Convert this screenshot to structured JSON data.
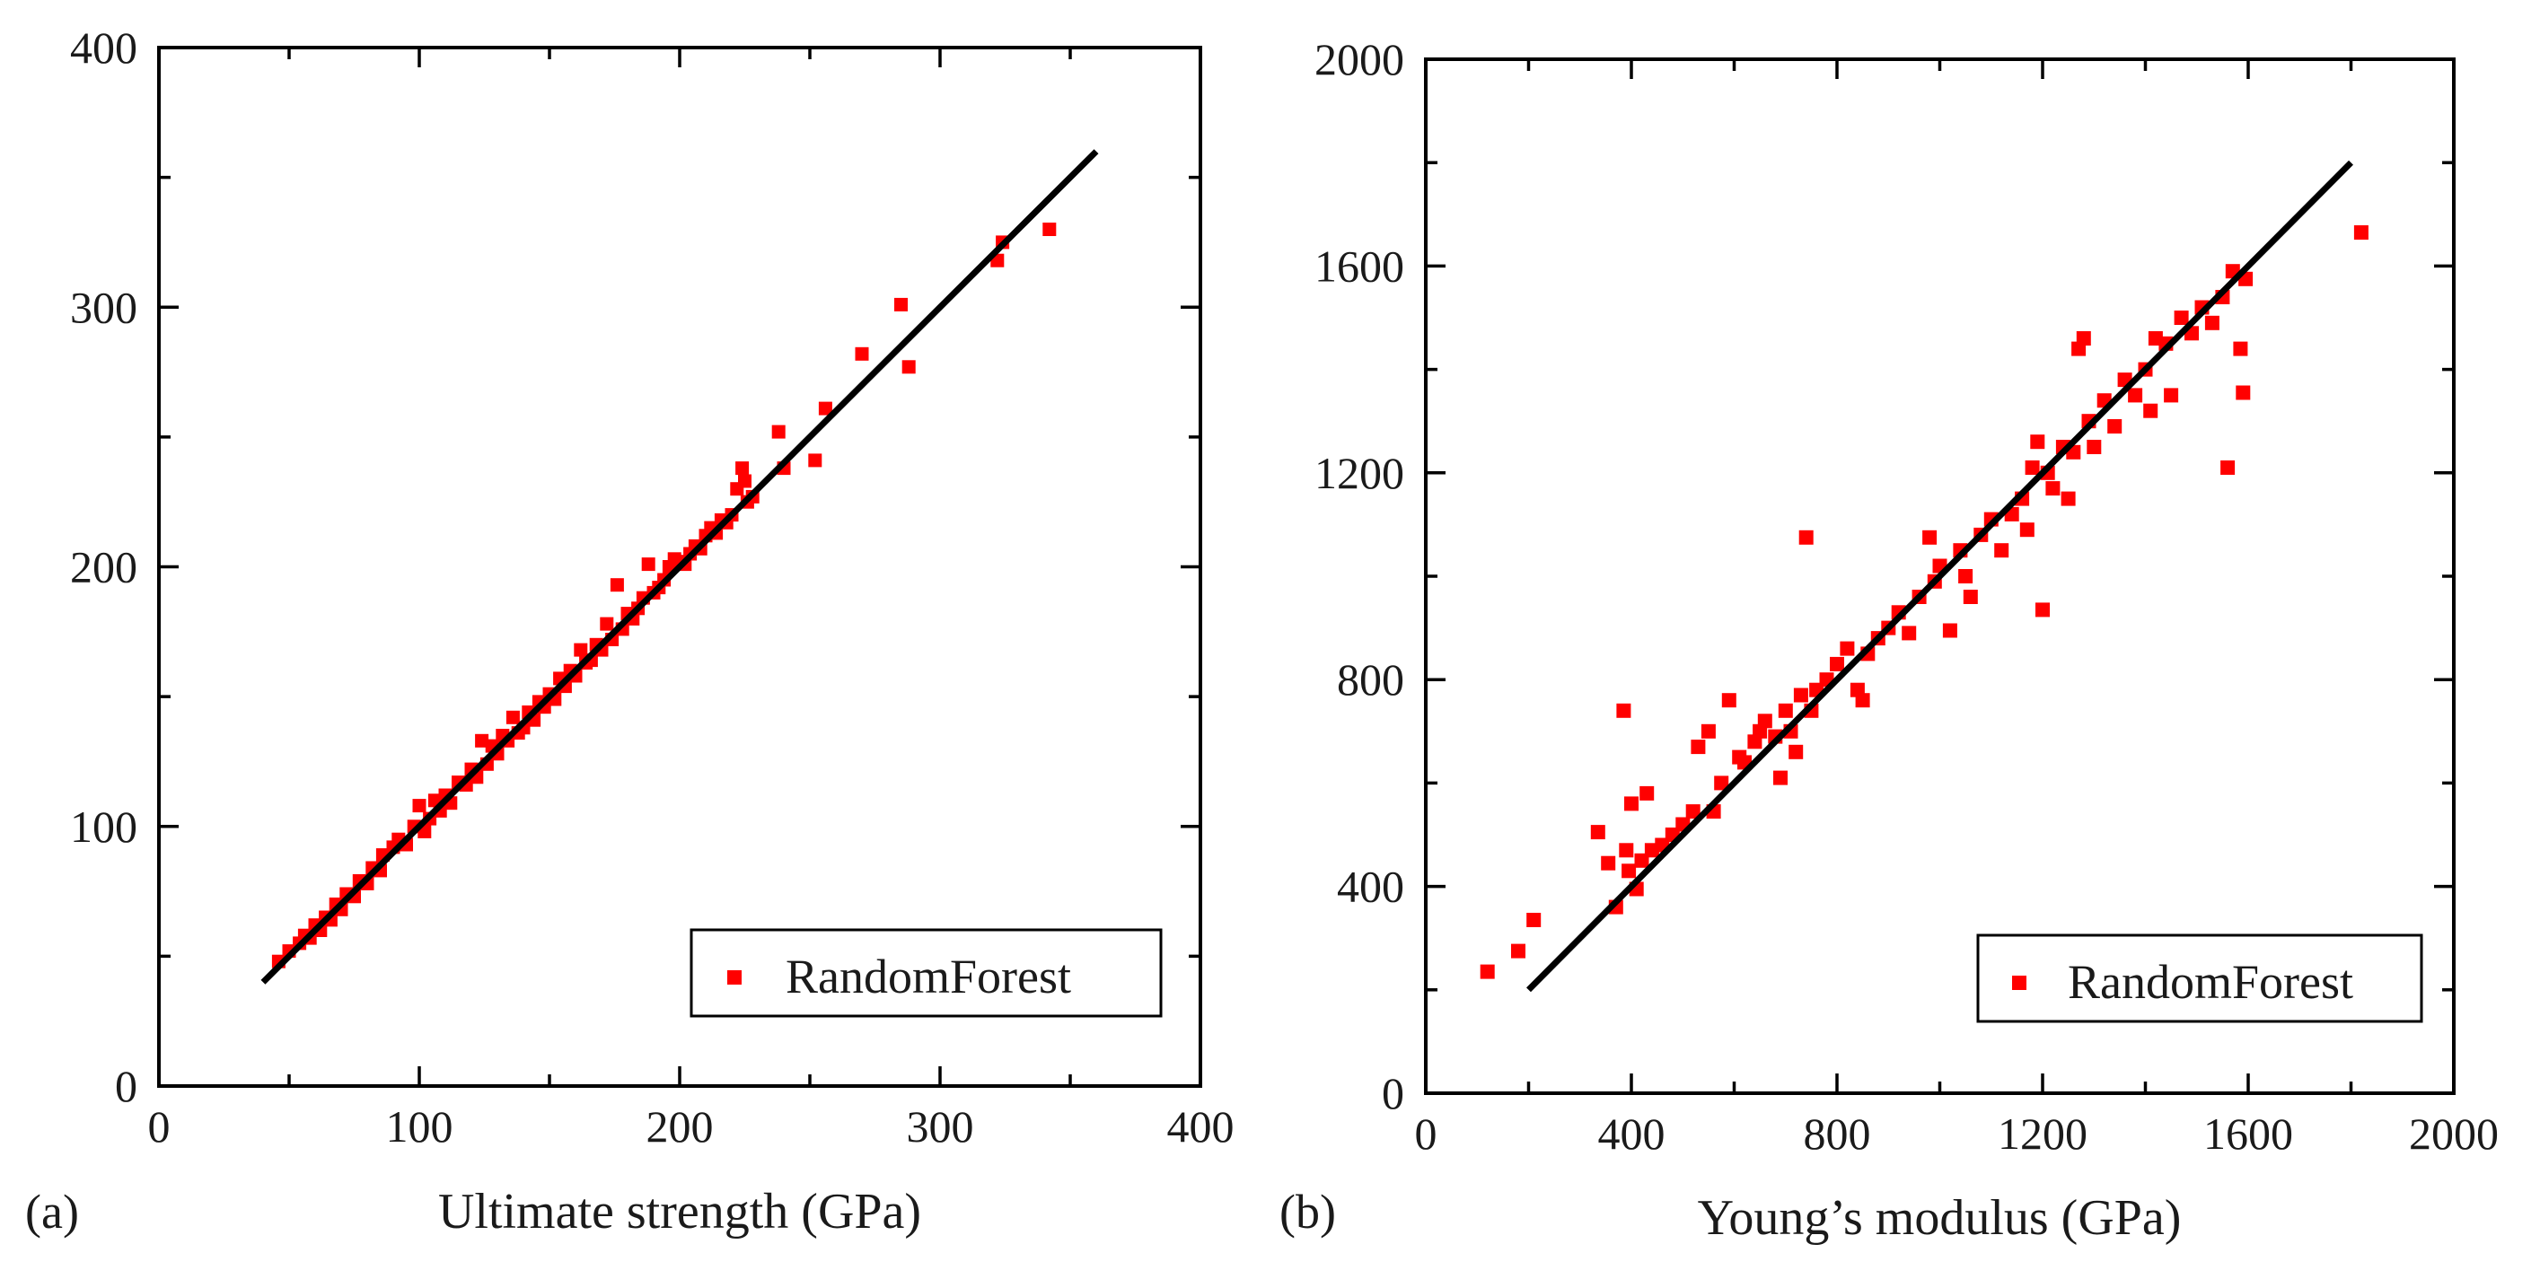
{
  "chart_data": [
    {
      "type": "scatter",
      "panel_label": "(a)",
      "title": "",
      "xlabel": "Ultimate strength (GPa)",
      "ylabel": "",
      "xlim": [
        0,
        400
      ],
      "ylim": [
        0,
        400
      ],
      "x_ticks": [
        "0",
        "100",
        "200",
        "300",
        "400"
      ],
      "y_ticks": [
        "0",
        "100",
        "200",
        "300",
        "400"
      ],
      "legend": {
        "label": "RandomForest",
        "position": "bottom-right"
      },
      "series": [
        {
          "name": "RandomForest",
          "marker": "square",
          "color": "#ff0000",
          "points": [
            [
              46,
              48
            ],
            [
              50,
              52
            ],
            [
              54,
              55
            ],
            [
              56,
              58
            ],
            [
              58,
              57
            ],
            [
              60,
              62
            ],
            [
              62,
              60
            ],
            [
              64,
              65
            ],
            [
              66,
              64
            ],
            [
              68,
              70
            ],
            [
              70,
              68
            ],
            [
              72,
              74
            ],
            [
              75,
              73
            ],
            [
              77,
              79
            ],
            [
              80,
              78
            ],
            [
              82,
              84
            ],
            [
              85,
              83
            ],
            [
              86,
              89
            ],
            [
              90,
              92
            ],
            [
              92,
              95
            ],
            [
              95,
              93
            ],
            [
              98,
              100
            ],
            [
              100,
              108
            ],
            [
              102,
              98
            ],
            [
              104,
              103
            ],
            [
              106,
              110
            ],
            [
              108,
              106
            ],
            [
              110,
              112
            ],
            [
              112,
              109
            ],
            [
              115,
              117
            ],
            [
              118,
              116
            ],
            [
              120,
              122
            ],
            [
              122,
              119
            ],
            [
              124,
              133
            ],
            [
              126,
              124
            ],
            [
              128,
              131
            ],
            [
              130,
              128
            ],
            [
              132,
              135
            ],
            [
              134,
              133
            ],
            [
              136,
              142
            ],
            [
              138,
              136
            ],
            [
              140,
              138
            ],
            [
              142,
              144
            ],
            [
              144,
              141
            ],
            [
              146,
              148
            ],
            [
              148,
              146
            ],
            [
              150,
              151
            ],
            [
              152,
              149
            ],
            [
              154,
              157
            ],
            [
              156,
              154
            ],
            [
              158,
              160
            ],
            [
              160,
              158
            ],
            [
              162,
              168
            ],
            [
              164,
              163
            ],
            [
              166,
              164
            ],
            [
              168,
              170
            ],
            [
              170,
              168
            ],
            [
              172,
              178
            ],
            [
              174,
              172
            ],
            [
              176,
              193
            ],
            [
              178,
              176
            ],
            [
              180,
              182
            ],
            [
              182,
              180
            ],
            [
              184,
              184
            ],
            [
              186,
              188
            ],
            [
              188,
              201
            ],
            [
              190,
              190
            ],
            [
              192,
              192
            ],
            [
              194,
              195
            ],
            [
              196,
              200
            ],
            [
              198,
              203
            ],
            [
              200,
              202
            ],
            [
              202,
              201
            ],
            [
              204,
              205
            ],
            [
              206,
              208
            ],
            [
              208,
              207
            ],
            [
              210,
              212
            ],
            [
              212,
              215
            ],
            [
              214,
              213
            ],
            [
              216,
              218
            ],
            [
              218,
              217
            ],
            [
              220,
              220
            ],
            [
              222,
              230
            ],
            [
              224,
              238
            ],
            [
              225,
              233
            ],
            [
              226,
              225
            ],
            [
              228,
              227
            ],
            [
              238,
              252
            ],
            [
              240,
              238
            ],
            [
              252,
              241
            ],
            [
              256,
              261
            ],
            [
              270,
              282
            ],
            [
              285,
              301
            ],
            [
              288,
              277
            ],
            [
              322,
              318
            ],
            [
              324,
              325
            ],
            [
              342,
              330
            ]
          ]
        }
      ],
      "reference_line": {
        "x": [
          40,
          360
        ],
        "y": [
          40,
          360
        ],
        "color": "#000000"
      }
    },
    {
      "type": "scatter",
      "panel_label": "(b)",
      "title": "",
      "xlabel": "Young’s modulus (GPa)",
      "ylabel": "",
      "xlim": [
        0,
        2000
      ],
      "ylim": [
        0,
        2000
      ],
      "x_ticks": [
        "0",
        "400",
        "800",
        "1200",
        "1600",
        "2000"
      ],
      "y_ticks": [
        "0",
        "400",
        "800",
        "1200",
        "1600",
        "2000"
      ],
      "legend": {
        "label": "RandomForest",
        "position": "bottom-right"
      },
      "series": [
        {
          "name": "RandomForest",
          "marker": "square",
          "color": "#ff0000",
          "points": [
            [
              120,
              235
            ],
            [
              180,
              275
            ],
            [
              210,
              335
            ],
            [
              335,
              505
            ],
            [
              355,
              445
            ],
            [
              370,
              360
            ],
            [
              385,
              740
            ],
            [
              390,
              470
            ],
            [
              395,
              430
            ],
            [
              400,
              560
            ],
            [
              410,
              395
            ],
            [
              420,
              450
            ],
            [
              430,
              580
            ],
            [
              440,
              470
            ],
            [
              460,
              480
            ],
            [
              480,
              500
            ],
            [
              500,
              520
            ],
            [
              520,
              545
            ],
            [
              530,
              670
            ],
            [
              550,
              700
            ],
            [
              560,
              545
            ],
            [
              575,
              600
            ],
            [
              590,
              760
            ],
            [
              610,
              650
            ],
            [
              620,
              640
            ],
            [
              640,
              680
            ],
            [
              650,
              700
            ],
            [
              660,
              720
            ],
            [
              680,
              690
            ],
            [
              690,
              610
            ],
            [
              700,
              740
            ],
            [
              710,
              700
            ],
            [
              720,
              660
            ],
            [
              730,
              770
            ],
            [
              740,
              1075
            ],
            [
              750,
              740
            ],
            [
              760,
              780
            ],
            [
              780,
              800
            ],
            [
              800,
              830
            ],
            [
              820,
              860
            ],
            [
              840,
              780
            ],
            [
              850,
              760
            ],
            [
              860,
              850
            ],
            [
              880,
              880
            ],
            [
              900,
              900
            ],
            [
              920,
              930
            ],
            [
              940,
              890
            ],
            [
              960,
              960
            ],
            [
              980,
              1075
            ],
            [
              990,
              990
            ],
            [
              1000,
              1020
            ],
            [
              1020,
              895
            ],
            [
              1040,
              1050
            ],
            [
              1050,
              1000
            ],
            [
              1060,
              960
            ],
            [
              1080,
              1080
            ],
            [
              1100,
              1110
            ],
            [
              1120,
              1050
            ],
            [
              1140,
              1120
            ],
            [
              1160,
              1150
            ],
            [
              1170,
              1090
            ],
            [
              1180,
              1210
            ],
            [
              1190,
              1260
            ],
            [
              1200,
              935
            ],
            [
              1210,
              1200
            ],
            [
              1220,
              1170
            ],
            [
              1240,
              1250
            ],
            [
              1250,
              1150
            ],
            [
              1260,
              1240
            ],
            [
              1270,
              1440
            ],
            [
              1280,
              1460
            ],
            [
              1290,
              1300
            ],
            [
              1300,
              1250
            ],
            [
              1320,
              1340
            ],
            [
              1340,
              1290
            ],
            [
              1360,
              1380
            ],
            [
              1380,
              1350
            ],
            [
              1400,
              1400
            ],
            [
              1410,
              1320
            ],
            [
              1420,
              1460
            ],
            [
              1440,
              1450
            ],
            [
              1450,
              1350
            ],
            [
              1470,
              1500
            ],
            [
              1490,
              1470
            ],
            [
              1510,
              1520
            ],
            [
              1530,
              1490
            ],
            [
              1550,
              1540
            ],
            [
              1560,
              1210
            ],
            [
              1570,
              1590
            ],
            [
              1585,
              1440
            ],
            [
              1590,
              1355
            ],
            [
              1595,
              1575
            ],
            [
              1820,
              1665
            ]
          ]
        }
      ],
      "reference_line": {
        "x": [
          200,
          1800
        ],
        "y": [
          200,
          1800
        ],
        "color": "#000000"
      }
    }
  ]
}
